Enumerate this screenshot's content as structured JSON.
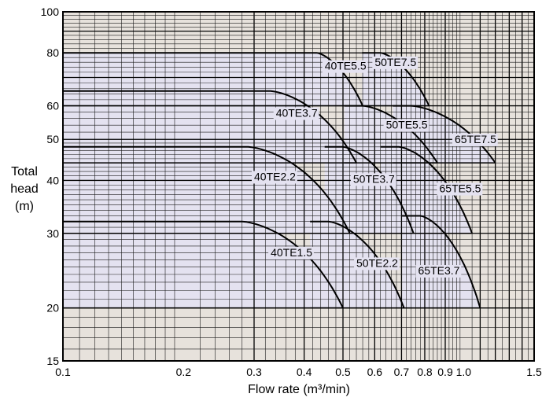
{
  "chart_data": {
    "type": "line",
    "title": "",
    "xlabel": "Flow rate (m³/min)",
    "ylabel": "Total head (m)",
    "ylabel_lines": [
      "Total",
      "head",
      "(m)"
    ],
    "x_scale": "log",
    "y_scale": "log",
    "xlim": [
      0.1,
      1.5
    ],
    "ylim": [
      15,
      100
    ],
    "grid": true,
    "x_ticks": [
      {
        "value": 0.1,
        "label": "0.1"
      },
      {
        "value": 0.2,
        "label": "0.2"
      },
      {
        "value": 0.3,
        "label": "0.3"
      },
      {
        "value": 0.4,
        "label": "0.4"
      },
      {
        "value": 0.5,
        "label": "0.5"
      },
      {
        "value": 0.6,
        "label": "0.6"
      },
      {
        "value": 0.7,
        "label": "0.7"
      },
      {
        "value": 0.8,
        "label": "0.8"
      },
      {
        "value": 0.9,
        "label": "0.9"
      },
      {
        "value": 1.0,
        "label": "1.0"
      },
      {
        "value": 1.5,
        "label": "1.5"
      }
    ],
    "y_ticks": [
      {
        "value": 15,
        "label": "15"
      },
      {
        "value": 20,
        "label": "20"
      },
      {
        "value": 30,
        "label": "30"
      },
      {
        "value": 40,
        "label": "40"
      },
      {
        "value": 50,
        "label": "50"
      },
      {
        "value": 60,
        "label": "60"
      },
      {
        "value": 80,
        "label": "80"
      },
      {
        "value": 100,
        "label": "100"
      }
    ],
    "series": [
      {
        "name": "40TE1.5",
        "head_max": 32,
        "head_min": 20,
        "q_shutoff": 0.28,
        "q_max": 0.5,
        "label_at": [
          0.33,
          26.5
        ]
      },
      {
        "name": "40TE2.2",
        "head_max": 48,
        "head_min": 30,
        "q_shutoff": 0.29,
        "q_max": 0.52,
        "label_at": [
          0.3,
          40
        ]
      },
      {
        "name": "40TE3.7",
        "head_max": 65,
        "head_min": 44,
        "q_shutoff": 0.33,
        "q_max": 0.54,
        "label_at": [
          0.34,
          56.5
        ]
      },
      {
        "name": "40TE5.5",
        "head_max": 80,
        "head_min": 60,
        "q_shutoff": 0.43,
        "q_max": 0.56,
        "label_at": [
          0.45,
          73
        ]
      },
      {
        "name": "50TE2.2",
        "head_max": 32,
        "head_min": 20,
        "q_shutoff": 0.46,
        "q_max": 0.71,
        "label_at": [
          0.54,
          25
        ]
      },
      {
        "name": "50TE3.7",
        "head_max": 48,
        "head_min": 30,
        "q_shutoff": 0.5,
        "q_max": 0.75,
        "label_at": [
          0.53,
          39.5
        ]
      },
      {
        "name": "50TE5.5",
        "head_max": 60,
        "head_min": 44,
        "q_shutoff": 0.56,
        "q_max": 0.86,
        "label_at": [
          0.64,
          53
        ]
      },
      {
        "name": "50TE7.5",
        "head_max": 80,
        "head_min": 60,
        "q_shutoff": 0.62,
        "q_max": 0.82,
        "label_at": [
          0.6,
          74.5
        ]
      },
      {
        "name": "65TE3.7",
        "head_max": 33,
        "head_min": 20,
        "q_shutoff": 0.78,
        "q_max": 1.1,
        "label_at": [
          0.77,
          24
        ]
      },
      {
        "name": "65TE5.5",
        "head_max": 48,
        "head_min": 30,
        "q_shutoff": 0.69,
        "q_max": 1.05,
        "label_at": [
          0.87,
          37.5
        ]
      },
      {
        "name": "65TE7.5",
        "head_max": 60,
        "head_min": 44,
        "q_shutoff": 0.74,
        "q_max": 1.2,
        "label_at": [
          0.95,
          49
        ]
      }
    ],
    "colors": {
      "background": "#e7e2dc",
      "operating_region": "#e4e2f0",
      "grid_minor": "#1a1a1a",
      "grid_major": "#000000",
      "curve": "#000000"
    }
  }
}
